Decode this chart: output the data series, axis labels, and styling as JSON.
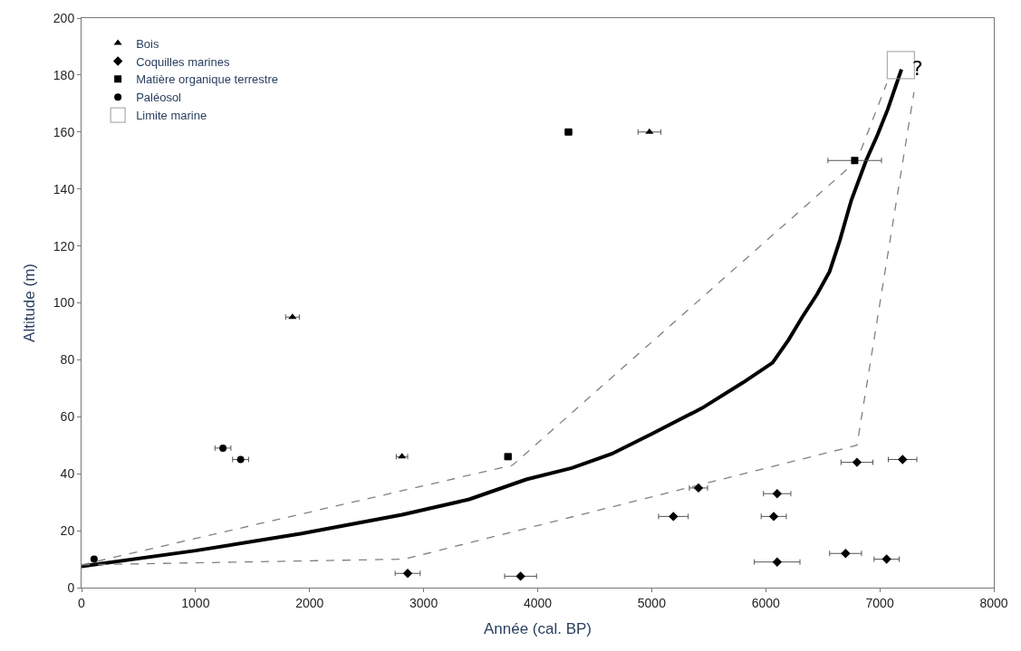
{
  "chart_data": {
    "type": "scatter",
    "xlabel": "Année (cal. BP)",
    "ylabel": "Altitude (m)",
    "xlim": [
      0,
      8000
    ],
    "xticks": [
      0,
      1000,
      2000,
      3000,
      4000,
      5000,
      6000,
      7000,
      8000
    ],
    "ylim": [
      0,
      200
    ],
    "yticks": [
      0,
      20,
      40,
      60,
      80,
      100,
      120,
      140,
      160,
      180,
      200
    ],
    "legend": "top left",
    "annotations": [
      "?"
    ],
    "series": [
      {
        "name": "Bois",
        "marker": "triangle",
        "color": "#000000",
        "x": [
          1850,
          2810,
          4980
        ],
        "values": [
          95,
          46,
          160
        ],
        "xerrors": [
          60,
          50,
          100
        ]
      },
      {
        "name": "Coquilles marines",
        "marker": "diamond",
        "color": "#000000",
        "x": [
          2860,
          3850,
          5190,
          5410,
          6100,
          6070,
          6100,
          6800,
          7200,
          6700,
          7060
        ],
        "values": [
          5,
          4,
          25,
          35,
          33,
          25,
          9,
          44,
          45,
          12,
          10
        ],
        "xerrors": [
          110,
          140,
          130,
          80,
          120,
          110,
          200,
          140,
          125,
          140,
          110
        ]
      },
      {
        "name": "Matière organique terrestre",
        "marker": "square",
        "color": "#000000",
        "x": [
          4270,
          3740,
          6780
        ],
        "values": [
          160,
          46,
          150
        ],
        "xerrors": [
          30,
          30,
          235
        ]
      },
      {
        "name": "Paléosol",
        "marker": "circle",
        "color": "#000000",
        "x": [
          110,
          1240,
          1395
        ],
        "values": [
          10,
          49,
          45
        ],
        "xerrors": [
          null,
          70,
          70
        ]
      },
      {
        "name": "Limite marine",
        "type": "bubble",
        "marker": "square",
        "color": "#909090",
        "x": [
          7185
        ],
        "values": [
          183.5
        ],
        "sizes": [
          1
        ]
      },
      {
        "type": "line",
        "marker": "none",
        "line_style": "solid",
        "color": "#000000",
        "x": [
          0,
          1000,
          1930,
          2810,
          3400,
          3900,
          4300,
          4650,
          5000,
          5440,
          5800,
          6060,
          6200,
          6320,
          6450,
          6560,
          6650,
          6750,
          6880,
          6980,
          7070,
          7190
        ],
        "values": [
          7.5,
          13,
          19,
          25.6,
          31,
          38,
          42,
          47,
          54,
          63,
          72,
          79,
          87,
          95,
          103,
          111,
          122,
          136,
          150,
          159,
          168,
          182
        ]
      },
      {
        "type": "line",
        "marker": "none",
        "line_style": "dashed",
        "color": "#808080",
        "x": [
          0,
          3780,
          6800,
          7060
        ],
        "values": [
          8,
          43,
          150,
          177
        ]
      },
      {
        "type": "line",
        "marker": "none",
        "line_style": "dashed",
        "color": "#808080",
        "x": [
          0,
          2830,
          6800,
          7300
        ],
        "values": [
          8,
          10,
          50,
          174
        ]
      }
    ]
  }
}
